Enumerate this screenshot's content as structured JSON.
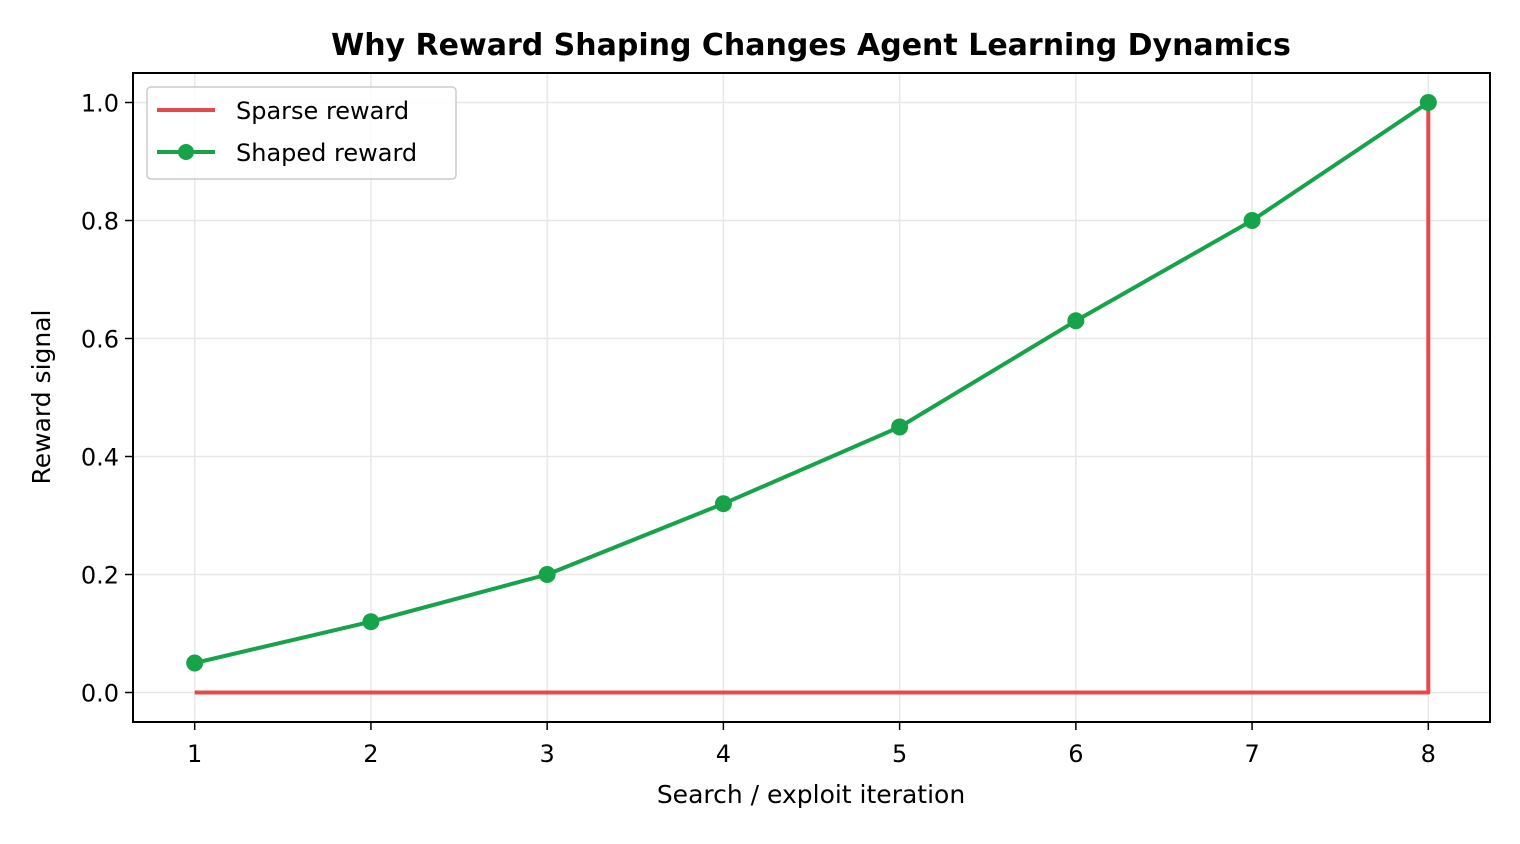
{
  "chart_data": {
    "type": "line",
    "title": "Why Reward Shaping Changes Agent Learning Dynamics",
    "xlabel": "Search / exploit iteration",
    "ylabel": "Reward signal",
    "x": [
      1,
      2,
      3,
      4,
      5,
      6,
      7,
      8
    ],
    "xlim": [
      0.65,
      8.35
    ],
    "ylim": [
      -0.05,
      1.05
    ],
    "x_ticks": [
      "1",
      "2",
      "3",
      "4",
      "5",
      "6",
      "7",
      "8"
    ],
    "y_ticks": [
      "0.0",
      "0.2",
      "0.4",
      "0.6",
      "0.8",
      "1.0"
    ],
    "y_tick_values": [
      0.0,
      0.2,
      0.4,
      0.6,
      0.8,
      1.0
    ],
    "grid": true,
    "legend_position": "top-left",
    "series": [
      {
        "name": "Sparse reward",
        "style": "step",
        "color": "#e5484d",
        "markers": false,
        "values": [
          0,
          0,
          0,
          0,
          0,
          0,
          0,
          1.0
        ]
      },
      {
        "name": "Shaped reward",
        "style": "line",
        "color": "#16a34a",
        "markers": true,
        "values": [
          0.05,
          0.12,
          0.2,
          0.32,
          0.45,
          0.63,
          0.8,
          1.0
        ]
      }
    ]
  }
}
